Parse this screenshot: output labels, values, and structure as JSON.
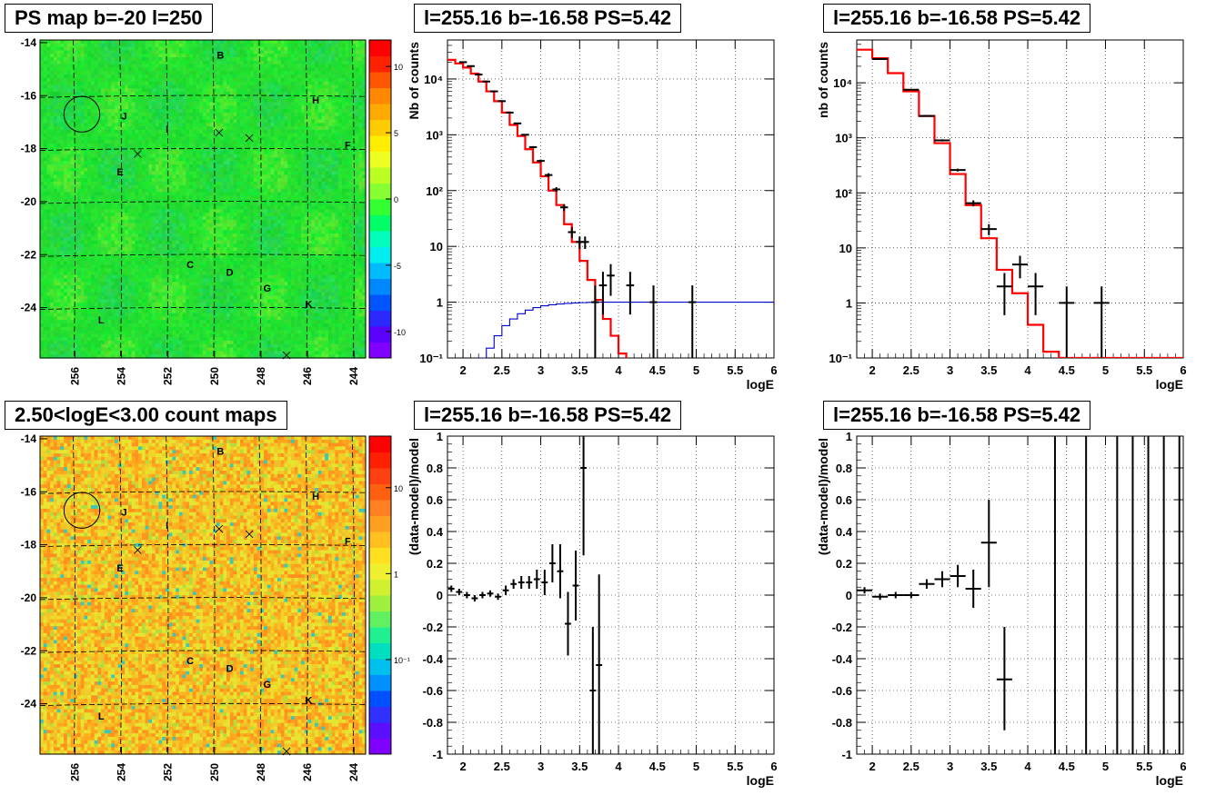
{
  "panels": {
    "map1": {
      "title": "PS map b=-20 l=250",
      "colorbar_ticks": [
        "10",
        "5",
        "0",
        "-5",
        "-10"
      ],
      "colorbar_range": [
        -12,
        12
      ]
    },
    "map2": {
      "title": "2.50<logE<3.00 count maps",
      "colorbar_ticks": [
        "10",
        "1",
        "10⁻¹"
      ],
      "colorbar_log_range": [
        -2.1,
        1.6
      ]
    },
    "spec1": {
      "title": "l=255.16 b=-16.58 PS=5.42"
    },
    "spec2": {
      "title": "l=255.16 b=-16.58 PS=5.42"
    },
    "res1": {
      "title": "l=255.16 b=-16.58 PS=5.42"
    },
    "res2": {
      "title": "l=255.16 b=-16.58 PS=5.42"
    }
  },
  "map_axes": {
    "x_ticks": [
      "256",
      "254",
      "252",
      "250",
      "248",
      "246",
      "244"
    ],
    "y_ticks": [
      "-14",
      "-16",
      "-18",
      "-20",
      "-22",
      "-24"
    ],
    "xlim": [
      257.5,
      243.5
    ],
    "ylim": [
      -25.9,
      -13.9
    ]
  },
  "map_labels": [
    {
      "t": "B",
      "l": 249.9,
      "b": -14.6
    },
    {
      "t": "H",
      "l": 245.8,
      "b": -16.3
    },
    {
      "t": "J",
      "l": 254.0,
      "b": -16.9
    },
    {
      "t": "I",
      "l": 252.1,
      "b": -17.4
    },
    {
      "t": "F",
      "l": 244.4,
      "b": -18.0
    },
    {
      "t": "E",
      "l": 254.2,
      "b": -19.0
    },
    {
      "t": "C",
      "l": 251.2,
      "b": -22.5
    },
    {
      "t": "D",
      "l": 249.5,
      "b": -22.8
    },
    {
      "t": "G",
      "l": 247.9,
      "b": -23.4
    },
    {
      "t": "K",
      "l": 246.1,
      "b": -24.0
    },
    {
      "t": "L",
      "l": 255.0,
      "b": -24.6
    }
  ],
  "map_crosses": [
    {
      "l": 253.3,
      "b": -18.2
    },
    {
      "l": 249.8,
      "b": -17.4
    },
    {
      "l": 248.5,
      "b": -17.6
    },
    {
      "l": 246.9,
      "b": -25.8
    }
  ],
  "map_circle": {
    "l": 255.7,
    "b": -16.7,
    "r": 0.7
  },
  "chart_data": [
    {
      "type": "line",
      "title": "l=255.16 b=-16.58 PS=5.42",
      "xlabel": "logE",
      "ylabel": "Nb of counts",
      "xlim": [
        1.8,
        6
      ],
      "ylim": [
        0.1,
        50000
      ],
      "yscale": "log",
      "grid": true,
      "x_ticks": [
        "2",
        "2.5",
        "3",
        "3.5",
        "4",
        "4.5",
        "5",
        "5.5",
        "6"
      ],
      "y_ticks": [
        "10⁻¹",
        "1",
        "10",
        "10²",
        "10³",
        "10⁴"
      ],
      "series": [
        {
          "color": "#ff0000",
          "kind": "step",
          "edges": [
            1.8,
            1.9,
            2.0,
            2.1,
            2.2,
            2.3,
            2.4,
            2.5,
            2.6,
            2.7,
            2.8,
            2.9,
            3.0,
            3.1,
            3.2,
            3.3,
            3.4,
            3.5,
            3.6,
            3.7,
            3.8,
            3.9,
            4.0,
            4.1,
            4.2,
            4.3,
            4.4,
            4.5,
            4.6,
            4.7,
            4.8,
            4.9,
            5.0,
            5.1,
            5.2,
            5.3,
            5.4,
            5.5,
            5.6,
            5.7,
            5.8,
            5.9,
            6.0
          ],
          "values": [
            22000,
            19000,
            16000,
            12500,
            9000,
            6000,
            4000,
            2500,
            1500,
            950,
            550,
            320,
            180,
            100,
            55,
            25,
            12,
            5.5,
            2.5,
            1.1,
            0.5,
            0.25,
            0.12,
            0.07,
            0.07,
            0.07,
            0.07,
            0.07,
            0.07,
            0.07,
            0.07,
            0.07,
            0.07,
            0.07,
            0.07,
            0.07,
            0.07,
            0.07,
            0.07,
            0.07,
            0.07,
            0.07
          ]
        },
        {
          "color": "#0000cc",
          "kind": "step",
          "edges": [
            2.1,
            2.2,
            2.3,
            2.4,
            2.5,
            2.6,
            2.7,
            2.8,
            2.9,
            3.0,
            3.1,
            3.2,
            3.3,
            3.4,
            3.5,
            3.6,
            3.7,
            3.8,
            3.9,
            4.0,
            4.1,
            4.2,
            4.3,
            4.4,
            4.5,
            4.6,
            4.7,
            4.8,
            4.9,
            5.0,
            5.1,
            5.2,
            5.3,
            5.4,
            5.5,
            5.6,
            5.7,
            5.8,
            5.9,
            6.0
          ],
          "values": [
            0.08,
            0.1,
            0.15,
            0.25,
            0.38,
            0.5,
            0.62,
            0.72,
            0.8,
            0.86,
            0.9,
            0.93,
            0.95,
            0.97,
            0.98,
            0.99,
            1,
            1,
            1,
            1,
            1,
            1,
            1,
            1,
            1,
            1,
            1,
            1,
            1,
            1,
            1,
            1,
            1,
            1,
            1,
            1,
            1,
            1,
            1
          ]
        }
      ],
      "points": [
        {
          "x": 2.0,
          "y": 20000,
          "ylo": 19500,
          "yhi": 20500,
          "xw": 0.05
        },
        {
          "x": 2.1,
          "y": 17000,
          "ylo": 16700,
          "yhi": 17300,
          "xw": 0.05
        },
        {
          "x": 2.2,
          "y": 12000,
          "ylo": 11800,
          "yhi": 12200,
          "xw": 0.05
        },
        {
          "x": 2.3,
          "y": 9000,
          "ylo": 8800,
          "yhi": 9200,
          "xw": 0.05
        },
        {
          "x": 2.4,
          "y": 6000,
          "ylo": 5850,
          "yhi": 6150,
          "xw": 0.05
        },
        {
          "x": 2.5,
          "y": 4000,
          "ylo": 3900,
          "yhi": 4100,
          "xw": 0.05
        },
        {
          "x": 2.6,
          "y": 2500,
          "ylo": 2450,
          "yhi": 2550,
          "xw": 0.05
        },
        {
          "x": 2.7,
          "y": 1600,
          "ylo": 1560,
          "yhi": 1640,
          "xw": 0.05
        },
        {
          "x": 2.8,
          "y": 1000,
          "ylo": 970,
          "yhi": 1030,
          "xw": 0.05
        },
        {
          "x": 2.9,
          "y": 600,
          "ylo": 575,
          "yhi": 625,
          "xw": 0.05
        },
        {
          "x": 3.0,
          "y": 340,
          "ylo": 320,
          "yhi": 360,
          "xw": 0.05
        },
        {
          "x": 3.1,
          "y": 190,
          "ylo": 175,
          "yhi": 205,
          "xw": 0.05
        },
        {
          "x": 3.2,
          "y": 105,
          "ylo": 95,
          "yhi": 115,
          "xw": 0.05
        },
        {
          "x": 3.3,
          "y": 50,
          "ylo": 43,
          "yhi": 57,
          "xw": 0.05
        },
        {
          "x": 3.4,
          "y": 18,
          "ylo": 14,
          "yhi": 22,
          "xw": 0.05
        },
        {
          "x": 3.5,
          "y": 12,
          "ylo": 9,
          "yhi": 15,
          "xw": 0.05
        },
        {
          "x": 3.57,
          "y": 12,
          "ylo": 9,
          "yhi": 15,
          "xw": 0.05
        },
        {
          "x": 3.7,
          "y": 1,
          "ylo": 0.1,
          "yhi": 2,
          "xw": 0.05
        },
        {
          "x": 3.8,
          "y": 2,
          "ylo": 0.6,
          "yhi": 3.5,
          "xw": 0.05
        },
        {
          "x": 3.9,
          "y": 3,
          "ylo": 1.3,
          "yhi": 4.8,
          "xw": 0.05
        },
        {
          "x": 4.15,
          "y": 2,
          "ylo": 0.6,
          "yhi": 3.5,
          "xw": 0.05
        },
        {
          "x": 4.45,
          "y": 1,
          "ylo": 0.1,
          "yhi": 2,
          "xw": 0.05
        },
        {
          "x": 4.95,
          "y": 1,
          "ylo": 0.1,
          "yhi": 2,
          "xw": 0.05
        }
      ]
    },
    {
      "type": "line",
      "title": "l=255.16 b=-16.58 PS=5.42",
      "xlabel": "logE",
      "ylabel": "nb of counts",
      "xlim": [
        1.8,
        6
      ],
      "ylim": [
        0.1,
        60000
      ],
      "yscale": "log",
      "grid": true,
      "x_ticks": [
        "2",
        "2.5",
        "3",
        "3.5",
        "4",
        "4.5",
        "5",
        "5.5",
        "6"
      ],
      "y_ticks": [
        "10⁻¹",
        "1",
        "10",
        "10²",
        "10³",
        "10⁴"
      ],
      "series": [
        {
          "color": "#ff0000",
          "kind": "step",
          "edges": [
            1.8,
            2.0,
            2.2,
            2.4,
            2.6,
            2.8,
            3.0,
            3.2,
            3.4,
            3.6,
            3.8,
            4.0,
            4.2,
            4.4,
            4.6,
            4.8,
            5.0,
            5.2,
            5.4,
            5.6,
            5.8,
            6.0
          ],
          "values": [
            40000,
            28000,
            15000,
            7000,
            2500,
            800,
            220,
            60,
            15,
            4,
            1.5,
            0.4,
            0.13,
            0.1,
            0.1,
            0.1,
            0.1,
            0.1,
            0.1,
            0.1,
            0.1
          ]
        }
      ],
      "points": [
        {
          "x": 2.1,
          "y": 27000,
          "ylo": 26500,
          "yhi": 27500,
          "xw": 0.1
        },
        {
          "x": 2.5,
          "y": 7500,
          "ylo": 7350,
          "yhi": 7650,
          "xw": 0.1
        },
        {
          "x": 2.7,
          "y": 2500,
          "ylo": 2420,
          "yhi": 2580,
          "xw": 0.1
        },
        {
          "x": 2.9,
          "y": 900,
          "ylo": 860,
          "yhi": 940,
          "xw": 0.1
        },
        {
          "x": 3.1,
          "y": 260,
          "ylo": 245,
          "yhi": 275,
          "xw": 0.1
        },
        {
          "x": 3.3,
          "y": 65,
          "ylo": 57,
          "yhi": 73,
          "xw": 0.1
        },
        {
          "x": 3.5,
          "y": 22,
          "ylo": 17,
          "yhi": 27,
          "xw": 0.1
        },
        {
          "x": 3.7,
          "y": 2,
          "ylo": 0.6,
          "yhi": 3.5,
          "xw": 0.1
        },
        {
          "x": 3.9,
          "y": 5,
          "ylo": 2.8,
          "yhi": 7.2,
          "xw": 0.1
        },
        {
          "x": 4.1,
          "y": 2,
          "ylo": 0.6,
          "yhi": 3.5,
          "xw": 0.1
        },
        {
          "x": 4.5,
          "y": 1,
          "ylo": 0.1,
          "yhi": 2,
          "xw": 0.1
        },
        {
          "x": 4.95,
          "y": 1,
          "ylo": 0.1,
          "yhi": 2,
          "xw": 0.1
        }
      ]
    },
    {
      "type": "scatter",
      "title": "l=255.16 b=-16.58 PS=5.42",
      "xlabel": "logE",
      "ylabel": "(data-model)/model",
      "xlim": [
        1.8,
        6
      ],
      "ylim": [
        -1,
        1
      ],
      "grid": true,
      "x_ticks": [
        "2",
        "2.5",
        "3",
        "3.5",
        "4",
        "4.5",
        "5",
        "5.5",
        "6"
      ],
      "y_ticks": [
        "-1",
        "-0.8",
        "-0.6",
        "-0.4",
        "-0.2",
        "0",
        "0.2",
        "0.4",
        "0.6",
        "0.8",
        "1"
      ],
      "points": [
        {
          "x": 1.85,
          "y": 0.04,
          "ylo": 0.02,
          "yhi": 0.06,
          "xw": 0.04
        },
        {
          "x": 1.95,
          "y": 0.02,
          "ylo": 0.0,
          "yhi": 0.04,
          "xw": 0.04
        },
        {
          "x": 2.05,
          "y": 0.0,
          "ylo": -0.02,
          "yhi": 0.02,
          "xw": 0.04
        },
        {
          "x": 2.15,
          "y": -0.02,
          "ylo": -0.04,
          "yhi": 0.0,
          "xw": 0.04
        },
        {
          "x": 2.25,
          "y": 0.0,
          "ylo": -0.02,
          "yhi": 0.02,
          "xw": 0.04
        },
        {
          "x": 2.35,
          "y": 0.01,
          "ylo": -0.01,
          "yhi": 0.03,
          "xw": 0.04
        },
        {
          "x": 2.45,
          "y": -0.01,
          "ylo": -0.03,
          "yhi": 0.01,
          "xw": 0.04
        },
        {
          "x": 2.55,
          "y": 0.03,
          "ylo": 0.0,
          "yhi": 0.06,
          "xw": 0.04
        },
        {
          "x": 2.65,
          "y": 0.07,
          "ylo": 0.04,
          "yhi": 0.1,
          "xw": 0.04
        },
        {
          "x": 2.75,
          "y": 0.08,
          "ylo": 0.04,
          "yhi": 0.12,
          "xw": 0.04
        },
        {
          "x": 2.85,
          "y": 0.08,
          "ylo": 0.04,
          "yhi": 0.12,
          "xw": 0.04
        },
        {
          "x": 2.95,
          "y": 0.1,
          "ylo": 0.04,
          "yhi": 0.16,
          "xw": 0.04
        },
        {
          "x": 3.05,
          "y": 0.08,
          "ylo": 0.0,
          "yhi": 0.16,
          "xw": 0.04
        },
        {
          "x": 3.15,
          "y": 0.2,
          "ylo": 0.08,
          "yhi": 0.32,
          "xw": 0.04
        },
        {
          "x": 3.25,
          "y": 0.15,
          "ylo": -0.02,
          "yhi": 0.32,
          "xw": 0.04
        },
        {
          "x": 3.35,
          "y": -0.18,
          "ylo": -0.38,
          "yhi": 0.02,
          "xw": 0.04
        },
        {
          "x": 3.45,
          "y": 0.06,
          "ylo": -0.16,
          "yhi": 0.28,
          "xw": 0.04
        },
        {
          "x": 3.55,
          "y": 0.8,
          "ylo": 0.25,
          "yhi": 1.0,
          "xw": 0.04
        },
        {
          "x": 3.67,
          "y": -0.6,
          "ylo": -1.0,
          "yhi": -0.2,
          "xw": 0.04
        },
        {
          "x": 3.75,
          "y": -0.44,
          "ylo": -1.0,
          "yhi": 0.13,
          "xw": 0.04
        }
      ]
    },
    {
      "type": "scatter",
      "title": "l=255.16 b=-16.58 PS=5.42",
      "xlabel": "logE",
      "ylabel": "(data-model)/model",
      "xlim": [
        1.8,
        6
      ],
      "ylim": [
        -1,
        1
      ],
      "grid": true,
      "x_ticks": [
        "2",
        "2.5",
        "3",
        "3.5",
        "4",
        "4.5",
        "5",
        "5.5",
        "6"
      ],
      "y_ticks": [
        "-1",
        "-0.8",
        "-0.6",
        "-0.4",
        "-0.2",
        "0",
        "0.2",
        "0.4",
        "0.6",
        "0.8",
        "1"
      ],
      "points": [
        {
          "x": 1.9,
          "y": 0.03,
          "ylo": 0.01,
          "yhi": 0.05,
          "xw": 0.1
        },
        {
          "x": 2.1,
          "y": -0.01,
          "ylo": -0.03,
          "yhi": 0.01,
          "xw": 0.1
        },
        {
          "x": 2.3,
          "y": 0.0,
          "ylo": -0.02,
          "yhi": 0.02,
          "xw": 0.1
        },
        {
          "x": 2.5,
          "y": 0.0,
          "ylo": -0.02,
          "yhi": 0.02,
          "xw": 0.1
        },
        {
          "x": 2.7,
          "y": 0.07,
          "ylo": 0.04,
          "yhi": 0.1,
          "xw": 0.1
        },
        {
          "x": 2.9,
          "y": 0.1,
          "ylo": 0.05,
          "yhi": 0.15,
          "xw": 0.1
        },
        {
          "x": 3.1,
          "y": 0.12,
          "ylo": 0.05,
          "yhi": 0.19,
          "xw": 0.1
        },
        {
          "x": 3.3,
          "y": 0.04,
          "ylo": -0.08,
          "yhi": 0.16,
          "xw": 0.1
        },
        {
          "x": 3.5,
          "y": 0.33,
          "ylo": 0.05,
          "yhi": 0.6,
          "xw": 0.1
        },
        {
          "x": 3.7,
          "y": -0.53,
          "ylo": -0.85,
          "yhi": -0.2,
          "xw": 0.1
        },
        {
          "x": 4.35,
          "y": 1.0,
          "ylo": -1.0,
          "yhi": 1.0,
          "xw": 0.0
        },
        {
          "x": 4.75,
          "y": 1.0,
          "ylo": -1.0,
          "yhi": 1.0,
          "xw": 0.0
        },
        {
          "x": 5.15,
          "y": 1.0,
          "ylo": -1.0,
          "yhi": 1.0,
          "xw": 0.0
        },
        {
          "x": 5.35,
          "y": 1.0,
          "ylo": -1.0,
          "yhi": 1.0,
          "xw": 0.0
        },
        {
          "x": 5.55,
          "y": 1.0,
          "ylo": -1.0,
          "yhi": 1.0,
          "xw": 0.0
        },
        {
          "x": 5.75,
          "y": 1.0,
          "ylo": -1.0,
          "yhi": 1.0,
          "xw": 0.0
        },
        {
          "x": 5.95,
          "y": 1.0,
          "ylo": -1.0,
          "yhi": 1.0,
          "xw": 0.0
        }
      ]
    }
  ]
}
